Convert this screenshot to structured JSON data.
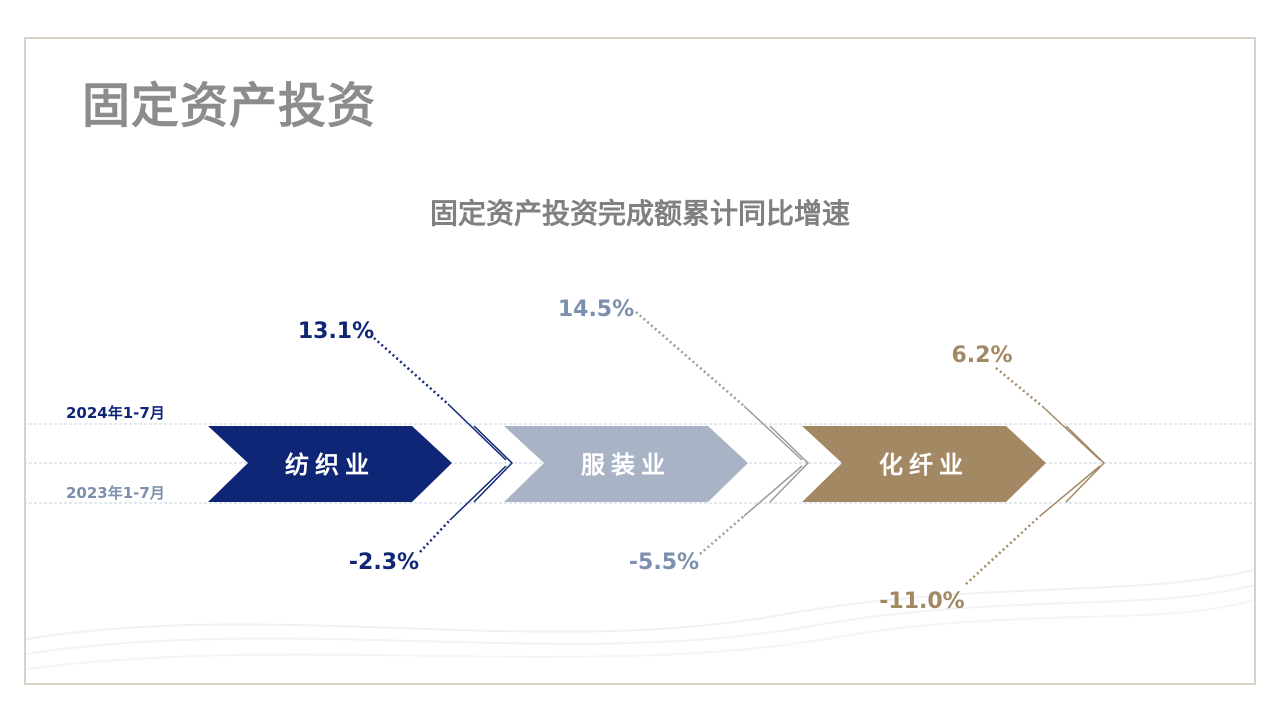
{
  "slide": {
    "title": "固定资产投资"
  },
  "colors": {
    "border": "#d9d2c4",
    "title_gray": "#8c8c8c",
    "navy": "#0f2676",
    "gray_blue": "#7b8fae",
    "gray_blue_fill": "#a9b3c6",
    "tan": "#a38864",
    "connector_gray": "#9b9b9b"
  },
  "chart_data": {
    "type": "bar",
    "title": "固定资产投资完成额累计同比增速",
    "categories": [
      "纺织业",
      "服装业",
      "化纤业"
    ],
    "series": [
      {
        "name": "2024年1-7月",
        "values_label": [
          "13.1%",
          "14.5%",
          "6.2%"
        ]
      },
      {
        "name": "2023年1-7月",
        "values_label": [
          "-2.3%",
          "-5.5%",
          "-11.0%"
        ]
      }
    ],
    "values": {
      "2024": [
        13.1,
        14.5,
        6.2
      ],
      "2023": [
        -2.3,
        -5.5,
        -11.0
      ]
    },
    "unit": "%",
    "grid": false
  }
}
